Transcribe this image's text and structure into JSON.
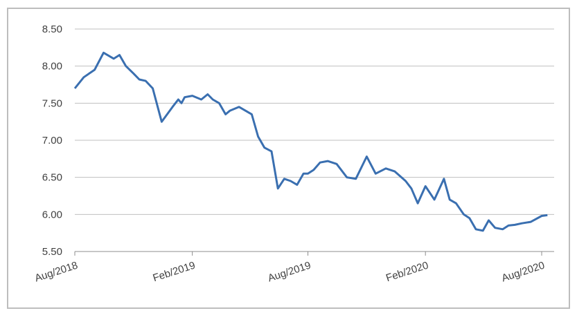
{
  "chart_data": {
    "type": "line",
    "title": "",
    "xlabel": "",
    "ylabel": "",
    "ylim": [
      5.5,
      8.5
    ],
    "y_ticks": [
      "8.50",
      "8.00",
      "7.50",
      "7.00",
      "6.50",
      "6.00",
      "5.50"
    ],
    "x_ticks": [
      "Aug/2018",
      "Feb/2019",
      "Aug/2019",
      "Feb/2020",
      "Aug/2020"
    ],
    "grid": "horizontal",
    "legend": "none",
    "line_color": "#3a6fb0",
    "series": [
      {
        "x": [
          "2018-08-01",
          "2018-08-15",
          "2018-09-01",
          "2018-09-15",
          "2018-10-01",
          "2018-10-10",
          "2018-10-20",
          "2018-11-01",
          "2018-11-10",
          "2018-11-20",
          "2018-12-01",
          "2018-12-15",
          "2019-01-01",
          "2019-01-10",
          "2019-01-15",
          "2019-01-20",
          "2019-02-01",
          "2019-02-15",
          "2019-02-25",
          "2019-03-05",
          "2019-03-15",
          "2019-03-25",
          "2019-04-01",
          "2019-04-15",
          "2019-04-25",
          "2019-05-05",
          "2019-05-15",
          "2019-05-25",
          "2019-06-05",
          "2019-06-15",
          "2019-06-25",
          "2019-07-05",
          "2019-07-15",
          "2019-07-25",
          "2019-08-01",
          "2019-08-10",
          "2019-08-20",
          "2019-09-01",
          "2019-09-15",
          "2019-10-01",
          "2019-10-15",
          "2019-11-01",
          "2019-11-15",
          "2019-12-01",
          "2019-12-15",
          "2020-01-01",
          "2020-01-10",
          "2020-01-20",
          "2020-02-01",
          "2020-02-15",
          "2020-03-01",
          "2020-03-10",
          "2020-03-20",
          "2020-04-01",
          "2020-04-10",
          "2020-04-20",
          "2020-05-01",
          "2020-05-10",
          "2020-05-20",
          "2020-06-01",
          "2020-06-10",
          "2020-06-20",
          "2020-07-01",
          "2020-07-15",
          "2020-08-01",
          "2020-08-10"
        ],
        "y": [
          7.7,
          7.85,
          7.95,
          8.18,
          8.1,
          8.15,
          8.0,
          7.9,
          7.82,
          7.8,
          7.7,
          7.25,
          7.45,
          7.55,
          7.5,
          7.58,
          7.6,
          7.55,
          7.62,
          7.55,
          7.5,
          7.35,
          7.4,
          7.45,
          7.4,
          7.35,
          7.05,
          6.9,
          6.85,
          6.35,
          6.48,
          6.45,
          6.4,
          6.55,
          6.55,
          6.6,
          6.7,
          6.72,
          6.68,
          6.5,
          6.48,
          6.78,
          6.55,
          6.62,
          6.58,
          6.45,
          6.35,
          6.15,
          6.38,
          6.2,
          6.48,
          6.2,
          6.15,
          6.0,
          5.95,
          5.8,
          5.78,
          5.92,
          5.82,
          5.8,
          5.85,
          5.86,
          5.88,
          5.9,
          5.98,
          5.99
        ]
      }
    ]
  }
}
